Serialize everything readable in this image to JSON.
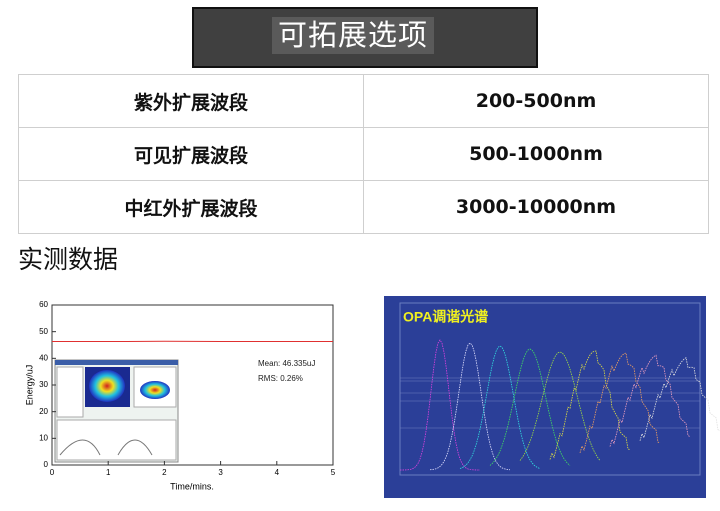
{
  "header": {
    "title": "可拓展选项"
  },
  "table": {
    "rows": [
      [
        "紫外扩展波段",
        "200-500nm"
      ],
      [
        "可见扩展波段",
        "500-1000nm"
      ],
      [
        "中红外扩展波段",
        "3000-10000nm"
      ]
    ]
  },
  "section": {
    "title": "实测数据"
  },
  "energy_chart": {
    "type": "line",
    "xlabel": "Time/mins.",
    "ylabel": "Energy/uJ",
    "x": [
      0,
      1,
      2,
      3,
      4,
      5
    ],
    "values": [
      46.3,
      46.3,
      46.4,
      46.3,
      46.3,
      46.3
    ],
    "color": "#e03030",
    "xlim": [
      0,
      5
    ],
    "xticks": [
      0,
      1,
      2,
      3,
      4,
      5
    ],
    "ylim": [
      0,
      60
    ],
    "yticks": [
      0,
      10,
      20,
      30,
      40,
      50,
      60
    ],
    "annotations": [
      "Mean: 46.335uJ",
      "RMS: 0.26%"
    ]
  },
  "spectrum": {
    "label": "OPA调谐光谱"
  }
}
